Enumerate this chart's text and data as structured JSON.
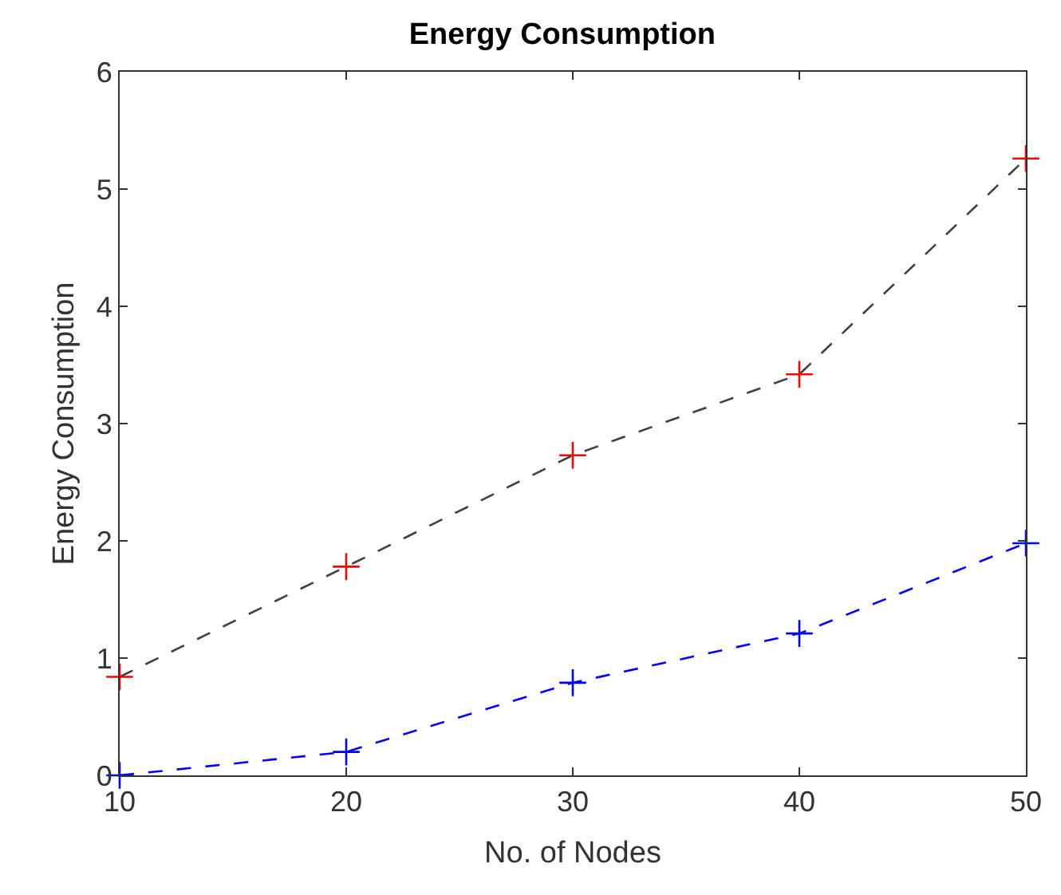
{
  "chart_data": {
    "type": "line",
    "title": "Energy Consumption",
    "xlabel": "No. of Nodes",
    "ylabel": "Energy Consumption",
    "x": [
      10,
      20,
      30,
      40,
      50
    ],
    "series": [
      {
        "color": "#404040",
        "colors": [
          "#ff0000",
          "#ff0000",
          "#ff0000",
          "#ff0000",
          "#ff0000"
        ],
        "values": [
          0.84,
          1.78,
          2.73,
          3.42,
          5.26
        ]
      },
      {
        "color": "#0000ff",
        "values": [
          0,
          0.2,
          0.79,
          1.21,
          1.98
        ]
      }
    ],
    "xlim": [
      10,
      50
    ],
    "xticks": [
      10,
      20,
      30,
      40,
      50
    ],
    "ylim": [
      0,
      6
    ],
    "yticks": [
      0,
      1,
      2,
      3,
      4,
      5,
      6
    ],
    "marker": "cross",
    "line_style": "dashed"
  }
}
